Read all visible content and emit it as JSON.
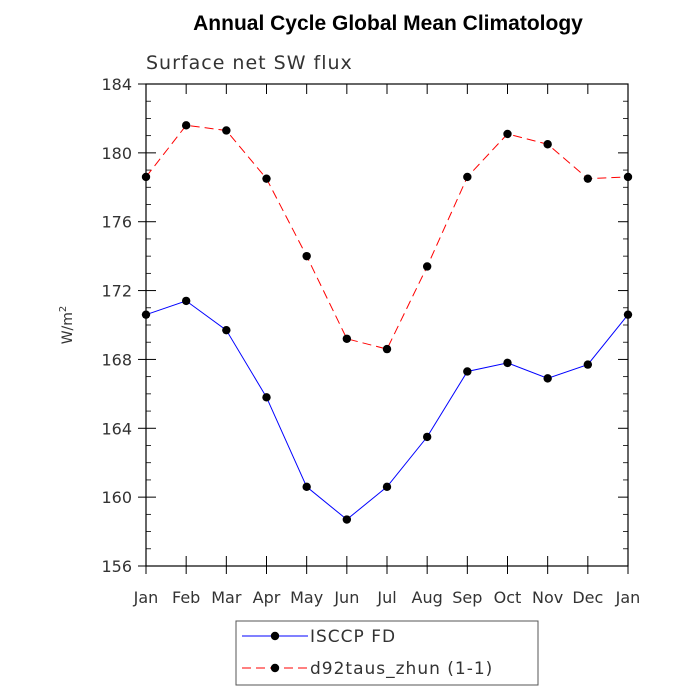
{
  "chart_data": {
    "type": "line",
    "title": "Annual Cycle Global Mean Climatology",
    "subtitle": "Surface net SW flux",
    "ylabel_base": "W/m",
    "ylabel_superscript": "2",
    "ylim": [
      156,
      184
    ],
    "yticks": [
      "156",
      "160",
      "164",
      "168",
      "172",
      "176",
      "180",
      "184"
    ],
    "categories": [
      "Jan",
      "Feb",
      "Mar",
      "Apr",
      "May",
      "Jun",
      "Jul",
      "Aug",
      "Sep",
      "Oct",
      "Nov",
      "Dec",
      "Jan"
    ],
    "series": [
      {
        "name": "ISCCP FD",
        "color": "#0000ff",
        "dash": "solid",
        "values": [
          170.6,
          171.4,
          169.7,
          165.8,
          160.6,
          158.7,
          160.6,
          163.5,
          167.3,
          167.8,
          166.9,
          167.7,
          170.6
        ]
      },
      {
        "name": "d92taus_zhun (1-1)",
        "color": "#ff0000",
        "dash": "dashed",
        "values": [
          178.6,
          181.6,
          181.3,
          178.5,
          174.0,
          169.2,
          168.6,
          173.4,
          178.6,
          181.1,
          180.5,
          178.5,
          178.6
        ]
      }
    ],
    "marker_color": "#000000",
    "legend_position": "bottom-center"
  }
}
